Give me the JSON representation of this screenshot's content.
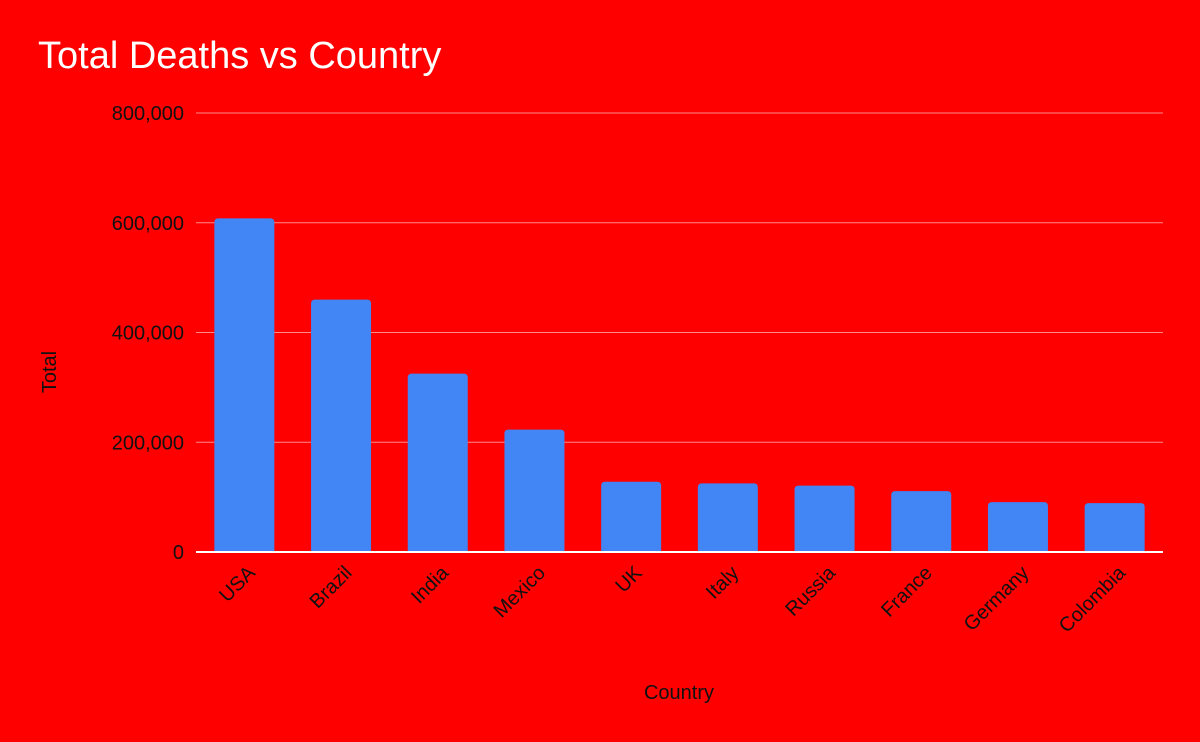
{
  "chart_data": {
    "type": "bar",
    "title": "Total Deaths vs Country",
    "xlabel": "Country",
    "ylabel": "Total",
    "categories": [
      "USA",
      "Brazil",
      "India",
      "Mexico",
      "UK",
      "Italy",
      "Russia",
      "France",
      "Germany",
      "Colombia"
    ],
    "series": [
      {
        "values": [
          608000,
          460000,
          325000,
          223000,
          128000,
          125000,
          121000,
          111000,
          91000,
          89000
        ]
      }
    ],
    "ylim": [
      0,
      800000
    ],
    "yticks": [
      0,
      200000,
      400000,
      600000,
      800000
    ],
    "ytick_labels": [
      "0",
      "200,000",
      "400,000",
      "600,000",
      "800,000"
    ],
    "grid": true,
    "legend": "none",
    "colors": {
      "background": "#ff0000",
      "bar": "#4285f4",
      "gridline": "#ff8a8a",
      "baseline": "#ffffff",
      "title": "#ffffff",
      "text": "#111111"
    }
  }
}
